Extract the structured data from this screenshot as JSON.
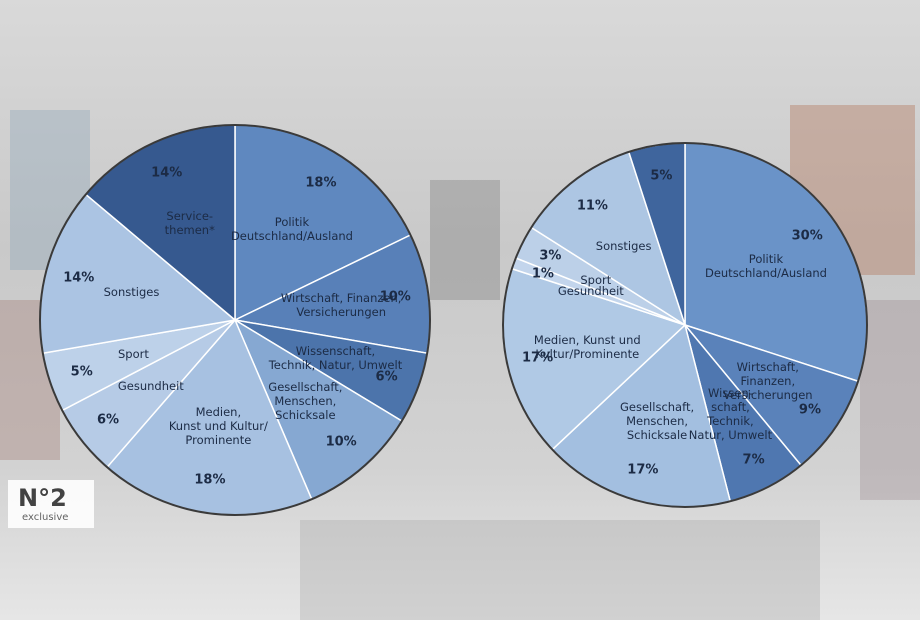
{
  "chart_data": [
    {
      "type": "pie",
      "categories": [
        "Politik\nDeutschland/Ausland",
        "Wirtschaft, Finanzen,\nVersicherungen",
        "Wissenschaft,\nTechnik, Natur, Umwelt",
        "Gesellschaft,\nMenschen,\nSchicksale",
        "Medien,\nKunst und Kultur/\nProminente",
        "Gesundheit",
        "Sport",
        "Sonstiges",
        "Service-\nthemen*"
      ],
      "values": [
        18,
        10,
        6,
        10,
        18,
        6,
        5,
        14,
        14
      ],
      "value_labels": [
        "18%",
        "10%",
        "6%",
        "10%",
        "18%",
        "6%",
        "5%",
        "14%",
        "14%"
      ],
      "colors": [
        "#5f88bf",
        "#5880b8",
        "#4c74ab",
        "#86a8d2",
        "#a7c1e1",
        "#b6cbe6",
        "#bdd1e9",
        "#abc4e3",
        "#36598f"
      ]
    },
    {
      "type": "pie",
      "categories": [
        "Politik\nDeutschland/Ausland",
        "Wirtschaft,\nFinanzen,\nVersicherungen",
        "Wissen-\nschaft,\nTechnik,\nNatur, Umwelt",
        "Gesellschaft,\nMenschen,\nSchicksale",
        "Medien, Kunst und\nKultur/Prominente",
        "Gesundheit",
        "Sport",
        "Sonstiges",
        null
      ],
      "values": [
        30,
        9,
        7,
        17,
        17,
        1,
        3,
        11,
        5
      ],
      "value_labels": [
        "30%",
        "9%",
        "7%",
        "17%",
        "17%",
        "1%",
        "3%",
        "11%",
        "5%"
      ],
      "colors": [
        "#6a93c8",
        "#5a82ba",
        "#4f77b0",
        "#a3bfe0",
        "#b0c9e5",
        "#c3d5ec",
        "#bcd0e8",
        "#adc6e3",
        "#3f659d"
      ]
    }
  ],
  "badge": {
    "number": "N°2",
    "label": "exclusive"
  }
}
